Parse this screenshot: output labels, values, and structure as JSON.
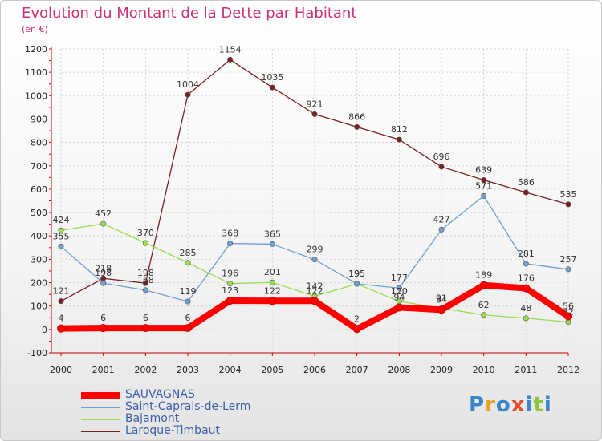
{
  "header": {
    "title": "Evolution du Montant de la Dette par Habitant",
    "subtitle": "(en €)"
  },
  "logo": {
    "text": "Proxiti",
    "colors": [
      "#3a86c8",
      "#e8a020",
      "#3a86c8",
      "#e05030",
      "#3a86c8",
      "#8cc43c",
      "#3a86c8"
    ]
  },
  "chart_data": {
    "type": "line",
    "title": "Evolution du Montant de la Dette par Habitant",
    "ylabel": "(en €)",
    "xlabel": "",
    "ylim": [
      -100,
      1200
    ],
    "yticks": [
      -100,
      0,
      100,
      200,
      300,
      400,
      500,
      600,
      700,
      800,
      900,
      1000,
      1100,
      1200
    ],
    "grid": true,
    "legend_position": "bottom-left",
    "categories": [
      "2000",
      "2001",
      "2002",
      "2003",
      "2004",
      "2005",
      "2006",
      "2007",
      "2008",
      "2009",
      "2010",
      "2011",
      "2012"
    ],
    "series": [
      {
        "name": "SAUVAGNAS",
        "color": "#ff0000",
        "values": [
          4,
          6,
          6,
          6,
          123,
          122,
          122,
          2,
          94,
          84,
          189,
          176,
          56
        ]
      },
      {
        "name": "Saint-Caprais-de-Lerm",
        "color": "#6fa0d0",
        "values": [
          355,
          198,
          168,
          119,
          368,
          365,
          299,
          195,
          177,
          427,
          571,
          281,
          257
        ]
      },
      {
        "name": "Bajamont",
        "color": "#99dd55",
        "values": [
          424,
          452,
          370,
          285,
          196,
          201,
          142,
          195,
          120,
          91,
          62,
          48,
          32
        ]
      },
      {
        "name": "Laroque-Timbaut",
        "color": "#7a2020",
        "values": [
          121,
          218,
          198,
          1004,
          1154,
          1035,
          921,
          866,
          812,
          696,
          639,
          586,
          535
        ]
      }
    ]
  }
}
